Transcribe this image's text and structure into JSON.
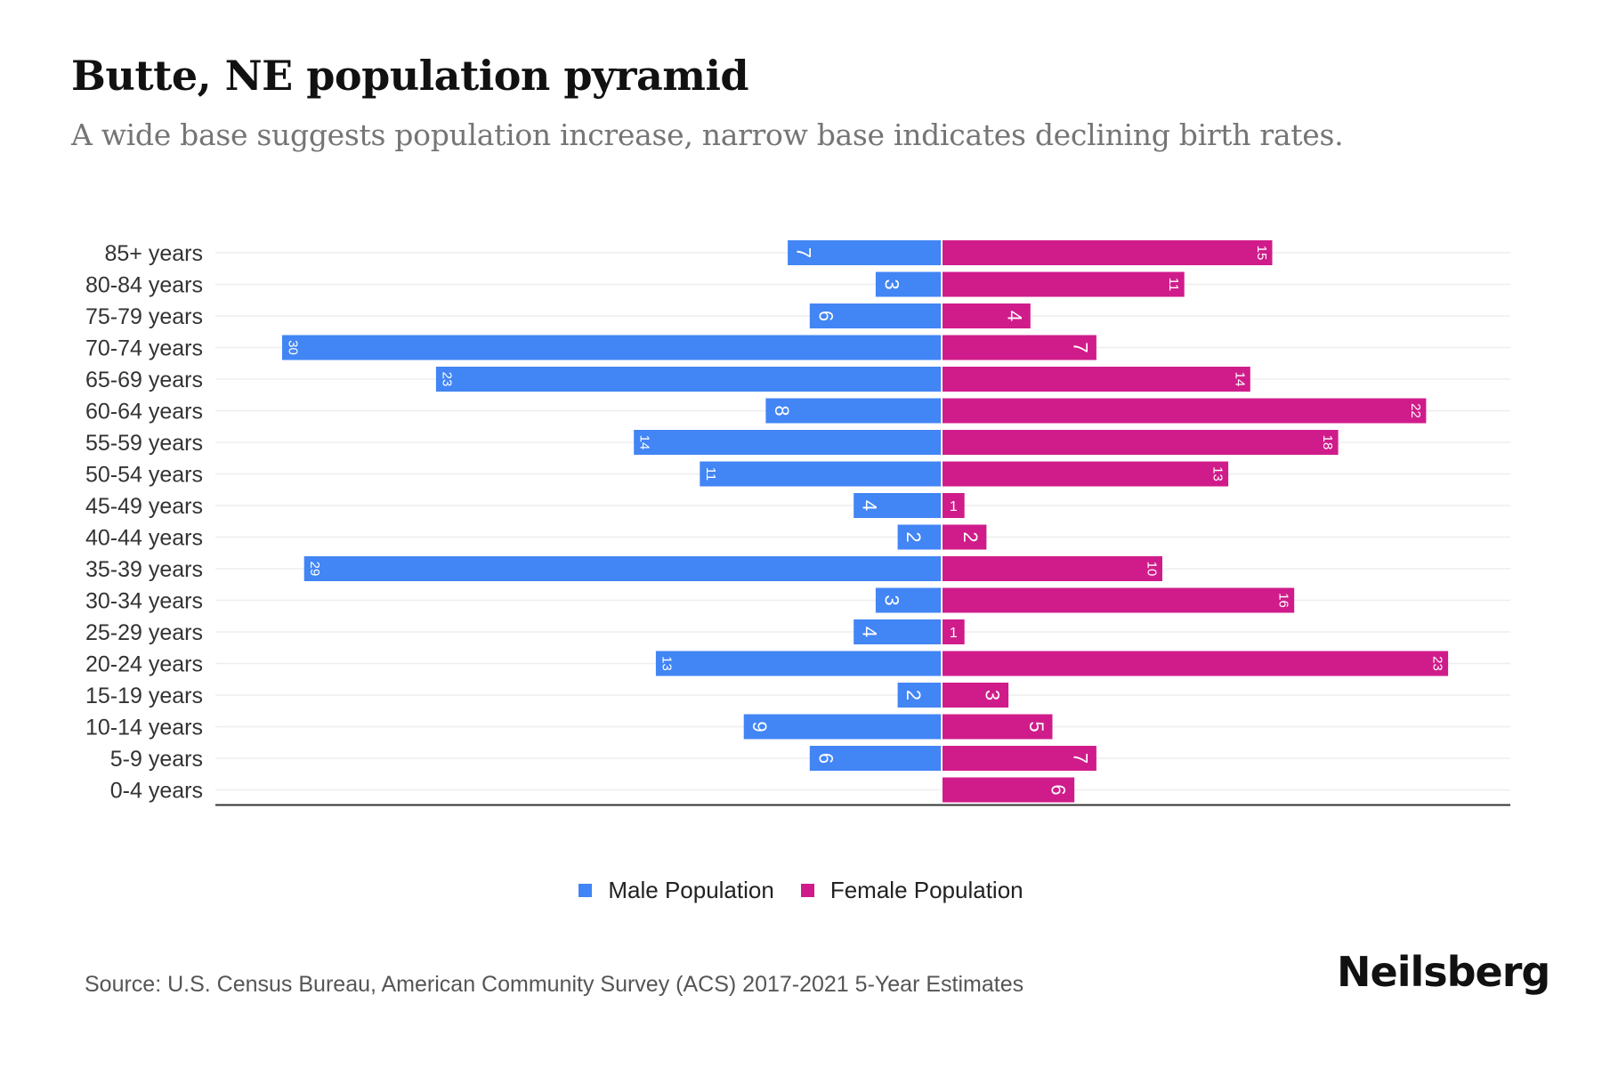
{
  "header": {
    "title": "Butte, NE population pyramid",
    "subtitle": "A wide base suggests population increase, narrow base indicates declining birth rates."
  },
  "colors": {
    "male": "#4285f4",
    "female": "#d01c8b",
    "gridline": "#eeeeee",
    "axis": "#333333"
  },
  "chart_data": {
    "type": "bar",
    "orientation": "horizontal-diverging",
    "title": "Butte, NE population pyramid",
    "subtitle": "A wide base suggests population increase, narrow base indicates declining birth rates.",
    "xlabel": "",
    "ylabel": "",
    "categories": [
      "85+ years",
      "80-84 years",
      "75-79 years",
      "70-74 years",
      "65-69 years",
      "60-64 years",
      "55-59 years",
      "50-54 years",
      "45-49 years",
      "40-44 years",
      "35-39 years",
      "30-34 years",
      "25-29 years",
      "20-24 years",
      "15-19 years",
      "10-14 years",
      "5-9 years",
      "0-4 years"
    ],
    "series": [
      {
        "name": "Male Population",
        "side": "left",
        "values": [
          7,
          3,
          6,
          30,
          23,
          8,
          14,
          11,
          4,
          2,
          29,
          3,
          4,
          13,
          2,
          9,
          6,
          0
        ]
      },
      {
        "name": "Female Population",
        "side": "right",
        "values": [
          15,
          11,
          4,
          7,
          14,
          22,
          18,
          13,
          1,
          2,
          10,
          16,
          1,
          23,
          3,
          5,
          7,
          6
        ]
      }
    ],
    "xlim": [
      -29,
      31
    ],
    "grid": true,
    "data_labels": "inside-end, rotated",
    "legend": "bottom-center"
  },
  "legend": {
    "items": [
      {
        "label": "Male Population",
        "color": "#4285f4"
      },
      {
        "label": "Female Population",
        "color": "#d01c8b"
      }
    ]
  },
  "footer": {
    "source": "Source: U.S. Census Bureau, American Community Survey (ACS) 2017-2021 5-Year Estimates",
    "brand": "Neilsberg"
  }
}
